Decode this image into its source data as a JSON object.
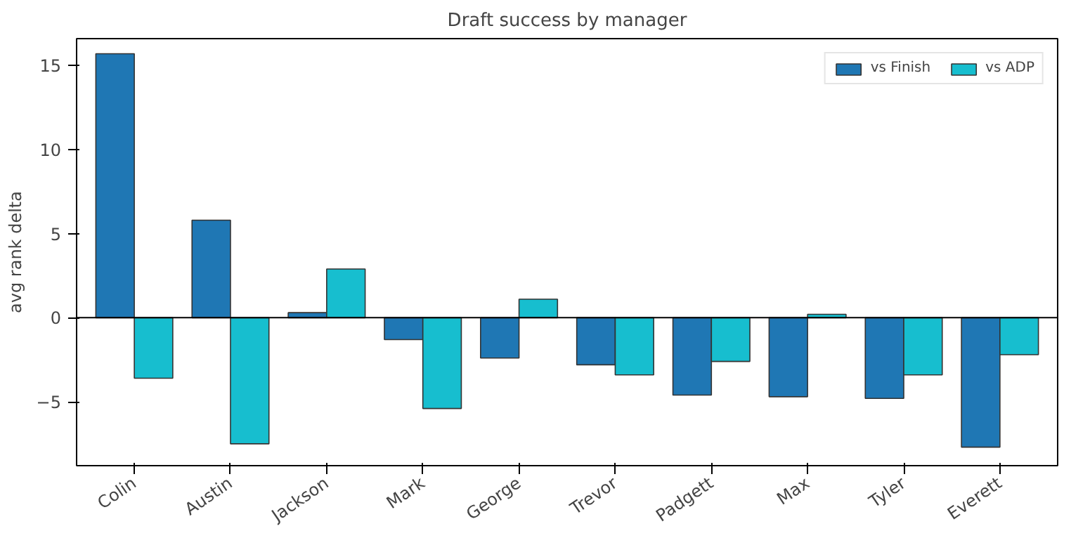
{
  "chart_data": {
    "type": "bar",
    "title": "Draft success by manager",
    "ylabel": "avg rank delta",
    "categories": [
      "Colin",
      "Austin",
      "Jackson",
      "Mark",
      "George",
      "Trevor",
      "Padgett",
      "Max",
      "Tyler",
      "Everett"
    ],
    "series": [
      {
        "name": "vs Finish",
        "color": "#1f77b4",
        "values": [
          15.7,
          5.8,
          0.3,
          -1.3,
          -2.4,
          -2.8,
          -4.6,
          -4.7,
          -4.8,
          -7.7
        ]
      },
      {
        "name": "vs ADP",
        "color": "#17becf",
        "values": [
          -3.6,
          -7.5,
          2.9,
          -5.4,
          1.1,
          -3.4,
          -2.6,
          0.2,
          -3.4,
          -2.2
        ]
      }
    ],
    "ylim": [
      -8.8,
      16.6
    ],
    "yticks": [
      {
        "value": -5,
        "label": "−5"
      },
      0,
      5,
      10,
      15
    ],
    "ref_lines": [
      {
        "axis": "y",
        "value": 0,
        "color": "#000000"
      }
    ],
    "grid": false,
    "legend": "top right"
  }
}
